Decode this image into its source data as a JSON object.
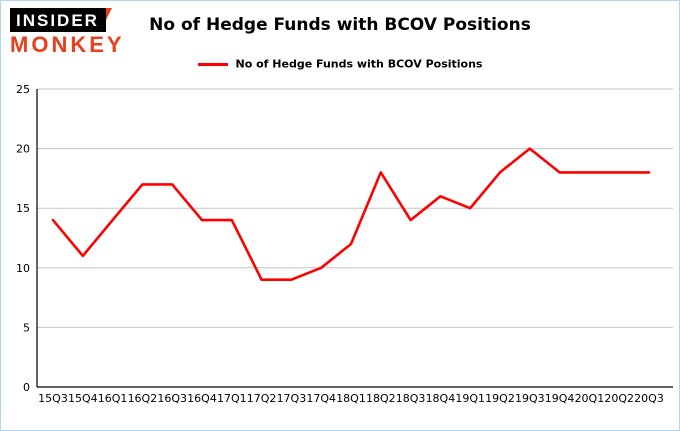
{
  "brand": {
    "line1": "INSIDER",
    "line2": "MONKEY",
    "bg": "#000000",
    "fg": "#ffffff",
    "accent": "#e8401c"
  },
  "header": {
    "title": "No of Hedge Funds with BCOV Positions"
  },
  "legend": {
    "label": "No of Hedge Funds with BCOV Positions"
  },
  "colors": {
    "border": "#aed6f1",
    "grid": "#c6c6c6",
    "axis": "#000000",
    "series": "#ff0000"
  },
  "chart_data": {
    "type": "line",
    "title": "No of Hedge Funds with BCOV Positions",
    "categories": [
      "15Q3",
      "15Q4",
      "16Q1",
      "16Q2",
      "16Q3",
      "16Q4",
      "17Q1",
      "17Q2",
      "17Q3",
      "17Q4",
      "18Q1",
      "18Q2",
      "18Q3",
      "18Q4",
      "19Q1",
      "19Q2",
      "19Q3",
      "19Q4",
      "20Q1",
      "20Q2",
      "20Q3"
    ],
    "values": [
      14,
      11,
      14,
      17,
      17,
      14,
      14,
      9,
      9,
      10,
      12,
      18,
      14,
      16,
      15,
      18,
      20,
      18,
      18,
      18,
      18
    ],
    "series_name": "No of Hedge Funds with BCOV Positions",
    "xlabel": "",
    "ylabel": "",
    "ylim": [
      0,
      25
    ],
    "yticks": [
      0,
      5,
      10,
      15,
      20,
      25
    ],
    "grid": true,
    "legend_position": "top",
    "line_color": "#ff0000"
  }
}
